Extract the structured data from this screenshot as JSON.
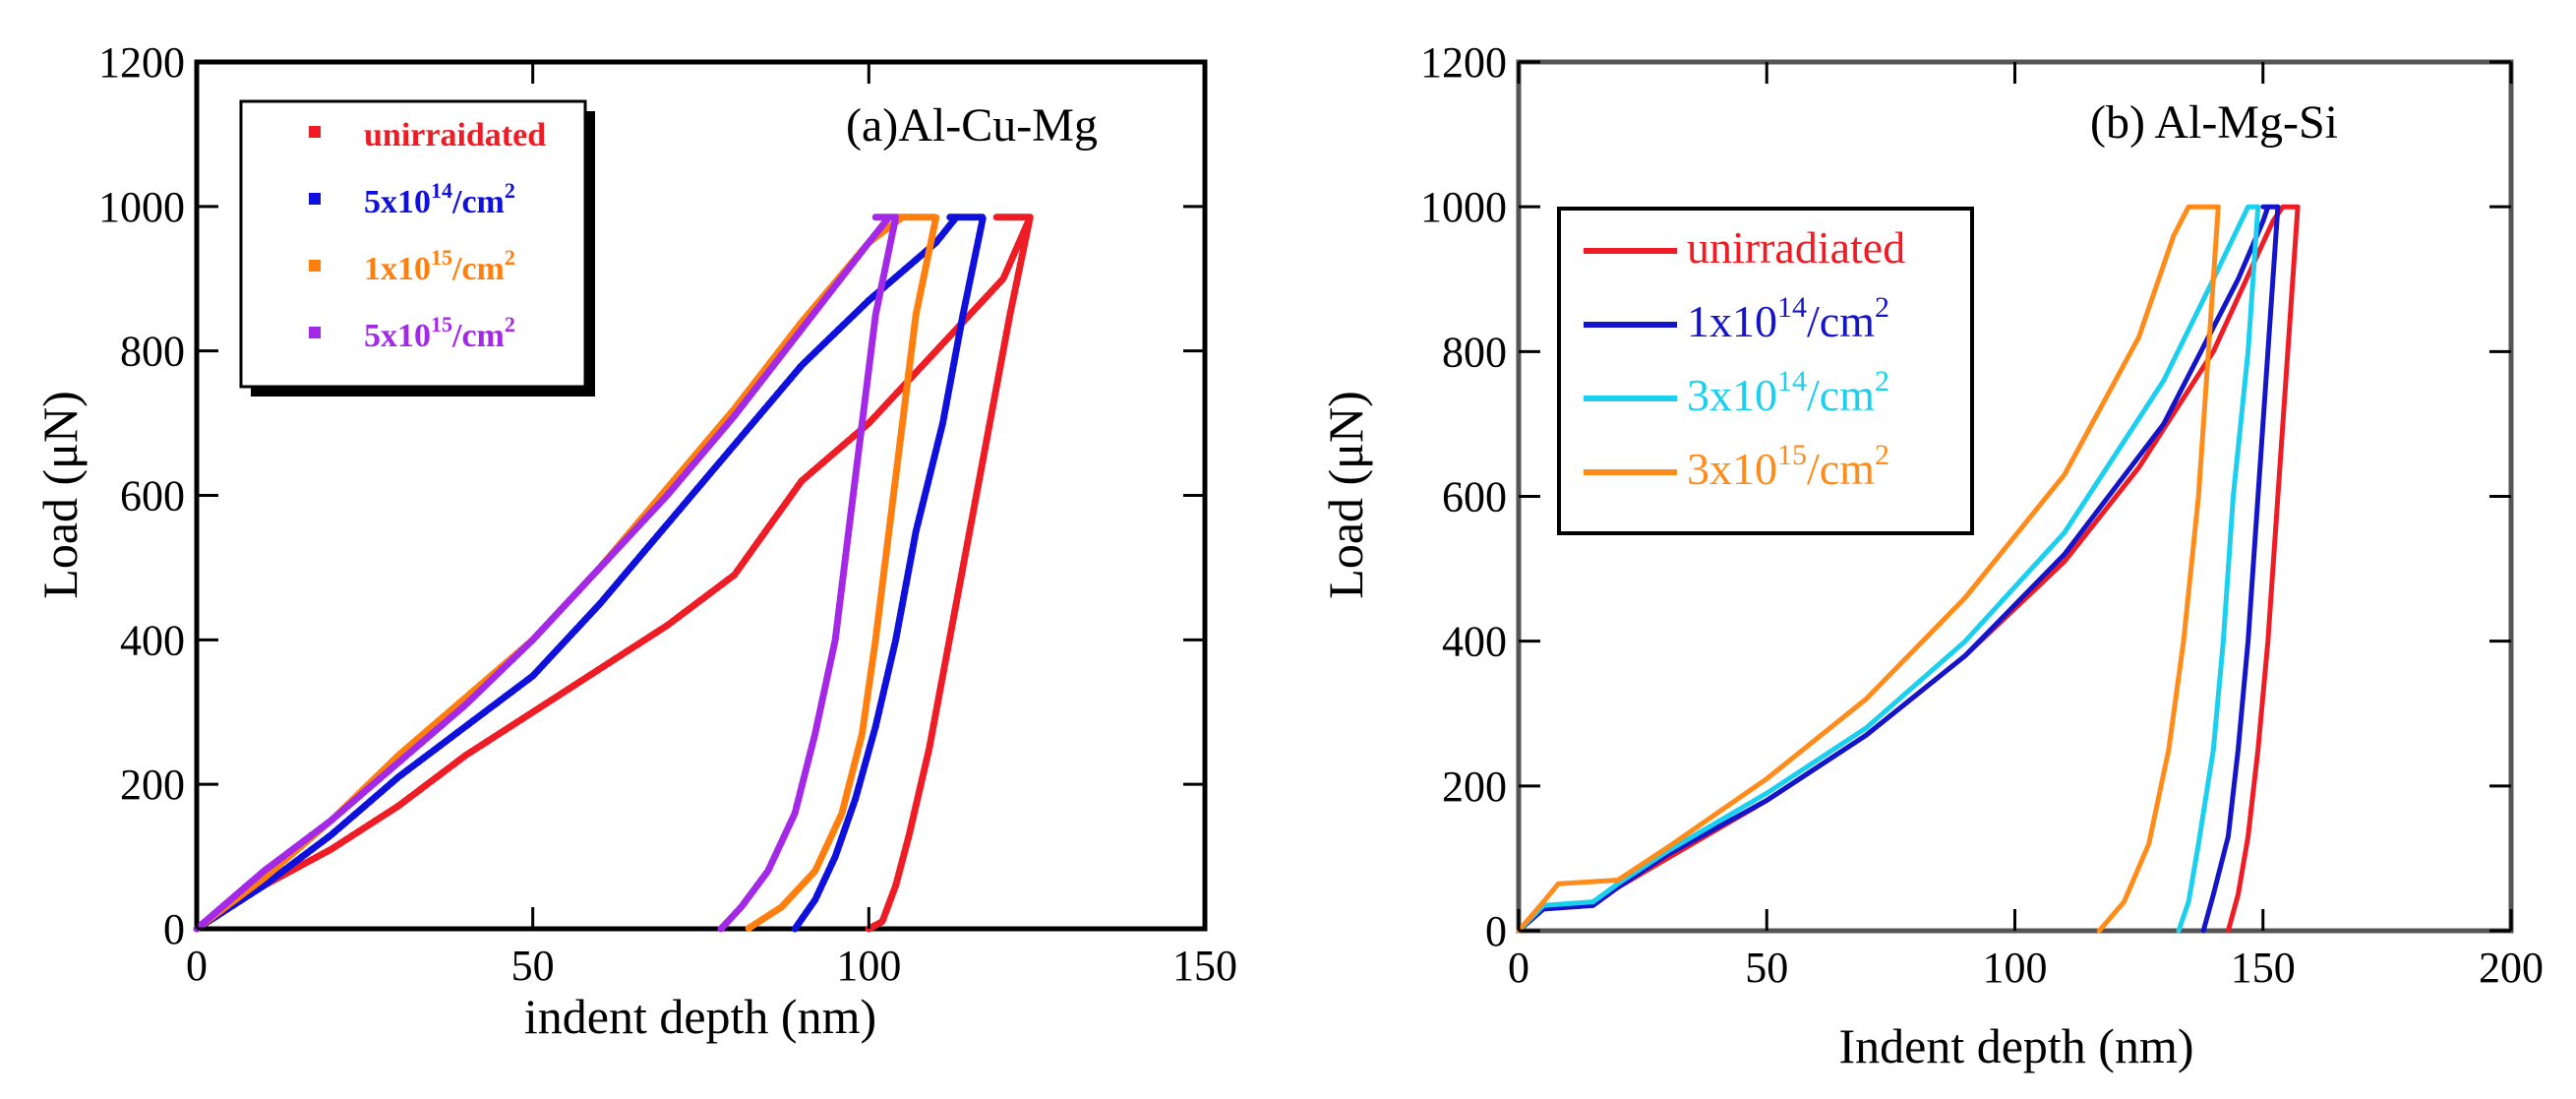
{
  "chart_data": [
    {
      "type": "line",
      "panel_title": "(a)Al-Cu-Mg",
      "xlabel": "indent depth (nm)",
      "ylabel": "Load (μN)",
      "xlim": [
        0,
        150
      ],
      "ylim": [
        0,
        1200
      ],
      "xticks": [
        "0",
        "50",
        "100",
        "150"
      ],
      "yticks": [
        "0",
        "200",
        "400",
        "600",
        "800",
        "1000",
        "1200"
      ],
      "legend_position": "top-left",
      "marker_style": "dotted",
      "series": [
        {
          "name": "unirraidated",
          "base": "unirraidated",
          "sup": "",
          "unit": "",
          "color": "#ee1c24",
          "loading": [
            [
              0,
              0
            ],
            [
              10,
              60
            ],
            [
              20,
              110
            ],
            [
              30,
              170
            ],
            [
              40,
              240
            ],
            [
              50,
              300
            ],
            [
              60,
              360
            ],
            [
              70,
              420
            ],
            [
              80,
              490
            ],
            [
              90,
              620
            ],
            [
              100,
              700
            ],
            [
              110,
              800
            ],
            [
              120,
              900
            ],
            [
              124,
              985
            ]
          ],
          "holding": [
            [
              119,
              985
            ],
            [
              124,
              985
            ]
          ],
          "unloading": [
            [
              124,
              985
            ],
            [
              121,
              850
            ],
            [
              118,
              700
            ],
            [
              115,
              550
            ],
            [
              112,
              400
            ],
            [
              109,
              250
            ],
            [
              106,
              130
            ],
            [
              104,
              60
            ],
            [
              102,
              10
            ],
            [
              100,
              0
            ]
          ]
        },
        {
          "name": "5x10^14/cm^2",
          "base": "5x10",
          "sup": "14",
          "unit": "/cm",
          "color": "#1010dd",
          "loading": [
            [
              0,
              0
            ],
            [
              10,
              60
            ],
            [
              20,
              130
            ],
            [
              30,
              210
            ],
            [
              40,
              280
            ],
            [
              50,
              350
            ],
            [
              60,
              450
            ],
            [
              70,
              560
            ],
            [
              80,
              670
            ],
            [
              90,
              780
            ],
            [
              100,
              870
            ],
            [
              110,
              950
            ],
            [
              113,
              985
            ]
          ],
          "holding": [
            [
              112,
              985
            ],
            [
              117,
              985
            ]
          ],
          "unloading": [
            [
              117,
              985
            ],
            [
              114,
              850
            ],
            [
              111,
              700
            ],
            [
              107,
              550
            ],
            [
              104,
              400
            ],
            [
              101,
              280
            ],
            [
              98,
              180
            ],
            [
              95,
              100
            ],
            [
              92,
              40
            ],
            [
              89,
              0
            ]
          ]
        },
        {
          "name": "1x10^15/cm^2",
          "base": "1x10",
          "sup": "15",
          "unit": "/cm",
          "color": "#ff7f0e",
          "loading": [
            [
              0,
              0
            ],
            [
              10,
              70
            ],
            [
              20,
              150
            ],
            [
              30,
              240
            ],
            [
              40,
              320
            ],
            [
              50,
              400
            ],
            [
              60,
              500
            ],
            [
              70,
              610
            ],
            [
              80,
              720
            ],
            [
              90,
              840
            ],
            [
              100,
              950
            ],
            [
              105,
              985
            ]
          ],
          "holding": [
            [
              104,
              985
            ],
            [
              110,
              985
            ]
          ],
          "unloading": [
            [
              110,
              985
            ],
            [
              107,
              850
            ],
            [
              105,
              700
            ],
            [
              103,
              550
            ],
            [
              101,
              400
            ],
            [
              99,
              270
            ],
            [
              96,
              160
            ],
            [
              92,
              80
            ],
            [
              87,
              30
            ],
            [
              82,
              0
            ]
          ]
        },
        {
          "name": "5x10^15/cm^2",
          "base": "5x10",
          "sup": "15",
          "unit": "/cm",
          "color": "#a329e6",
          "loading": [
            [
              0,
              0
            ],
            [
              10,
              80
            ],
            [
              20,
              150
            ],
            [
              30,
              230
            ],
            [
              40,
              310
            ],
            [
              50,
              400
            ],
            [
              60,
              500
            ],
            [
              70,
              600
            ],
            [
              80,
              710
            ],
            [
              90,
              830
            ],
            [
              100,
              950
            ],
            [
              103,
              985
            ]
          ],
          "holding": [
            [
              101,
              985
            ],
            [
              104,
              985
            ]
          ],
          "unloading": [
            [
              104,
              985
            ],
            [
              101,
              850
            ],
            [
              99,
              700
            ],
            [
              97,
              550
            ],
            [
              95,
              400
            ],
            [
              92,
              270
            ],
            [
              89,
              160
            ],
            [
              85,
              80
            ],
            [
              81,
              30
            ],
            [
              78,
              0
            ]
          ]
        }
      ]
    },
    {
      "type": "line",
      "panel_title": "(b) Al-Mg-Si",
      "xlabel": "Indent depth (nm)",
      "ylabel": "Load (μN)",
      "xlim": [
        0,
        200
      ],
      "ylim": [
        0,
        1200
      ],
      "xticks": [
        "0",
        "50",
        "100",
        "150",
        "200"
      ],
      "yticks": [
        "0",
        "200",
        "400",
        "600",
        "800",
        "1000",
        "1200"
      ],
      "legend_position": "center-left",
      "marker_style": "line",
      "series": [
        {
          "name": "unirradiated",
          "base": "unirradiated",
          "sup": "",
          "unit": "",
          "color": "#ee1c24",
          "loading": [
            [
              0,
              0
            ],
            [
              5,
              30
            ],
            [
              15,
              35
            ],
            [
              20,
              60
            ],
            [
              30,
              100
            ],
            [
              50,
              180
            ],
            [
              70,
              270
            ],
            [
              90,
              380
            ],
            [
              110,
              510
            ],
            [
              125,
              640
            ],
            [
              140,
              800
            ],
            [
              152,
              980
            ],
            [
              154,
              1000
            ]
          ],
          "holding": [
            [
              154,
              1000
            ],
            [
              157,
              1000
            ]
          ],
          "unloading": [
            [
              157,
              1000
            ],
            [
              155,
              800
            ],
            [
              153,
              600
            ],
            [
              151,
              400
            ],
            [
              149,
              250
            ],
            [
              147,
              130
            ],
            [
              145,
              50
            ],
            [
              143,
              0
            ]
          ]
        },
        {
          "name": "1x10^14/cm^2",
          "base": "1x10",
          "sup": "14",
          "unit": "/cm",
          "color": "#1414c8",
          "loading": [
            [
              0,
              0
            ],
            [
              5,
              30
            ],
            [
              15,
              35
            ],
            [
              20,
              60
            ],
            [
              30,
              105
            ],
            [
              50,
              180
            ],
            [
              70,
              270
            ],
            [
              90,
              380
            ],
            [
              110,
              520
            ],
            [
              130,
              700
            ],
            [
              145,
              900
            ],
            [
              150,
              980
            ],
            [
              151,
              1000
            ]
          ],
          "holding": [
            [
              150,
              1000
            ],
            [
              153,
              1000
            ]
          ],
          "unloading": [
            [
              153,
              1000
            ],
            [
              151,
              800
            ],
            [
              149,
              600
            ],
            [
              147,
              400
            ],
            [
              145,
              250
            ],
            [
              143,
              130
            ],
            [
              140,
              50
            ],
            [
              138,
              0
            ]
          ]
        },
        {
          "name": "3x10^14/cm^2",
          "base": "3x10",
          "sup": "14",
          "unit": "/cm",
          "color": "#1ad0ee",
          "loading": [
            [
              0,
              0
            ],
            [
              5,
              35
            ],
            [
              15,
              40
            ],
            [
              20,
              65
            ],
            [
              30,
              110
            ],
            [
              50,
              190
            ],
            [
              70,
              280
            ],
            [
              90,
              400
            ],
            [
              110,
              550
            ],
            [
              130,
              760
            ],
            [
              140,
              900
            ],
            [
              147,
              1000
            ]
          ],
          "holding": [
            [
              147,
              1000
            ],
            [
              149,
              1000
            ]
          ],
          "unloading": [
            [
              149,
              1000
            ],
            [
              147,
              800
            ],
            [
              144,
              600
            ],
            [
              142,
              400
            ],
            [
              140,
              250
            ],
            [
              137,
              120
            ],
            [
              135,
              40
            ],
            [
              133,
              0
            ]
          ]
        },
        {
          "name": "3x10^15/cm^2",
          "base": "3x10",
          "sup": "15",
          "unit": "/cm",
          "color": "#ff8c1a",
          "loading": [
            [
              0,
              0
            ],
            [
              5,
              40
            ],
            [
              8,
              65
            ],
            [
              20,
              70
            ],
            [
              30,
              115
            ],
            [
              50,
              210
            ],
            [
              70,
              320
            ],
            [
              90,
              460
            ],
            [
              110,
              630
            ],
            [
              125,
              820
            ],
            [
              132,
              960
            ],
            [
              135,
              1000
            ]
          ],
          "holding": [
            [
              135,
              1000
            ],
            [
              141,
              1000
            ]
          ],
          "unloading": [
            [
              141,
              1000
            ],
            [
              139,
              800
            ],
            [
              137,
              600
            ],
            [
              134,
              400
            ],
            [
              131,
              250
            ],
            [
              127,
              120
            ],
            [
              122,
              40
            ],
            [
              117,
              0
            ]
          ]
        }
      ]
    }
  ]
}
